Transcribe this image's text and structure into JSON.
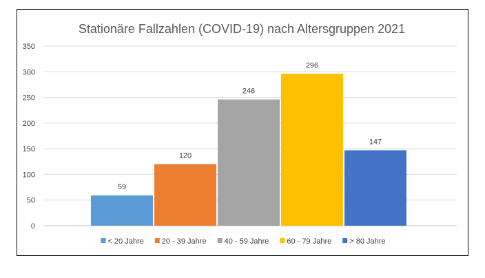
{
  "chart_data": {
    "type": "bar",
    "title": "Stationäre Fallzahlen (COVID-19) nach Altersgruppen 2021",
    "xlabel": "",
    "ylabel": "",
    "ylim": [
      0,
      350
    ],
    "yticks": [
      0,
      50,
      100,
      150,
      200,
      250,
      300,
      350
    ],
    "grid": true,
    "legend_position": "bottom",
    "series": [
      {
        "name": "< 20 Jahre",
        "value": 59,
        "color": "#5B9BD5"
      },
      {
        "name": "20 - 39 Jahre",
        "value": 120,
        "color": "#ED7D31"
      },
      {
        "name": "40 - 59 Jahre",
        "value": 246,
        "color": "#A5A5A5"
      },
      {
        "name": "60 - 79 Jahre",
        "value": 296,
        "color": "#FFC000"
      },
      {
        "name": "> 80 Jahre",
        "value": 147,
        "color": "#4472C4"
      }
    ]
  }
}
